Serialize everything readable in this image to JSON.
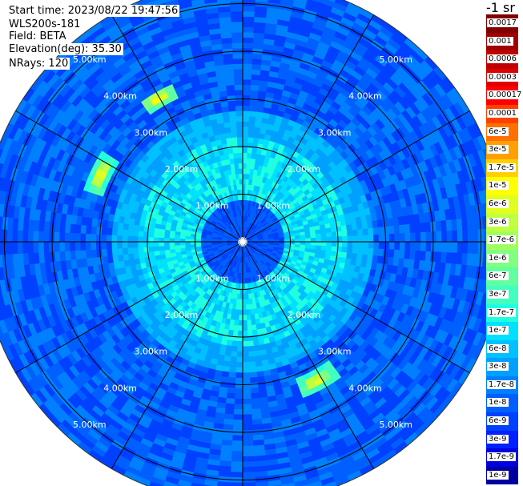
{
  "header": {
    "start_time": "Start time: 2023/08/22 19:47:56",
    "instrument": "WLS200s-181",
    "field": "Field: BETA",
    "elevation": "Elevation(deg): 35.30",
    "nrays": "NRays: 120"
  },
  "colorbar": {
    "title": "-1 sr",
    "labels": [
      "0.0017",
      "0.001",
      "0.0006",
      "0.0003",
      "0.00017",
      "0.0001",
      "6e-5",
      "3e-5",
      "1.7e-5",
      "1e-5",
      "6e-6",
      "3e-6",
      "1.7e-6",
      "1e-6",
      "6e-7",
      "3e-7",
      "1.7e-7",
      "1e-7",
      "6e-8",
      "3e-8",
      "1.7e-8",
      "1e-8",
      "6e-9",
      "3e-9",
      "1.7e-9",
      "1e-9"
    ],
    "colors": [
      "#800000",
      "#a00000",
      "#c00000",
      "#e00000",
      "#ff0000",
      "#ff4000",
      "#ff7000",
      "#ffa000",
      "#ffd000",
      "#ffff00",
      "#e0ff20",
      "#c0ff40",
      "#a0ff60",
      "#80ff80",
      "#60ffa0",
      "#40ffc0",
      "#20ffe0",
      "#00e0ff",
      "#00c0ff",
      "#00a0ff",
      "#0080ff",
      "#0060ff",
      "#0040ff",
      "#0020ff",
      "#0000e0",
      "#0000a0"
    ],
    "text_dark_from_index": 5
  },
  "chart_data": {
    "type": "polar_ppi",
    "nrays": 120,
    "max_range_km": 5.5,
    "range_rings": [
      {
        "km": 1,
        "label": "1.00km"
      },
      {
        "km": 2,
        "label": "2.00km"
      },
      {
        "km": 3,
        "label": "3.00km"
      },
      {
        "km": 4,
        "label": "4.00km"
      },
      {
        "km": 5,
        "label": "5.00km"
      }
    ],
    "azimuth_lines_deg": [
      0,
      30,
      60,
      90,
      120,
      150,
      180,
      210,
      240,
      270,
      300,
      330
    ],
    "background_level": "1e-8",
    "near_field_level": "1.7e-7",
    "features": [
      {
        "azimuth_deg": 330,
        "range_km": 3.5,
        "peak": "3e-5"
      },
      {
        "azimuth_deg": 295,
        "range_km": 3.3,
        "peak": "6e-5"
      },
      {
        "azimuth_deg": 152,
        "range_km": 3.3,
        "peak": "3e-5"
      }
    ]
  }
}
